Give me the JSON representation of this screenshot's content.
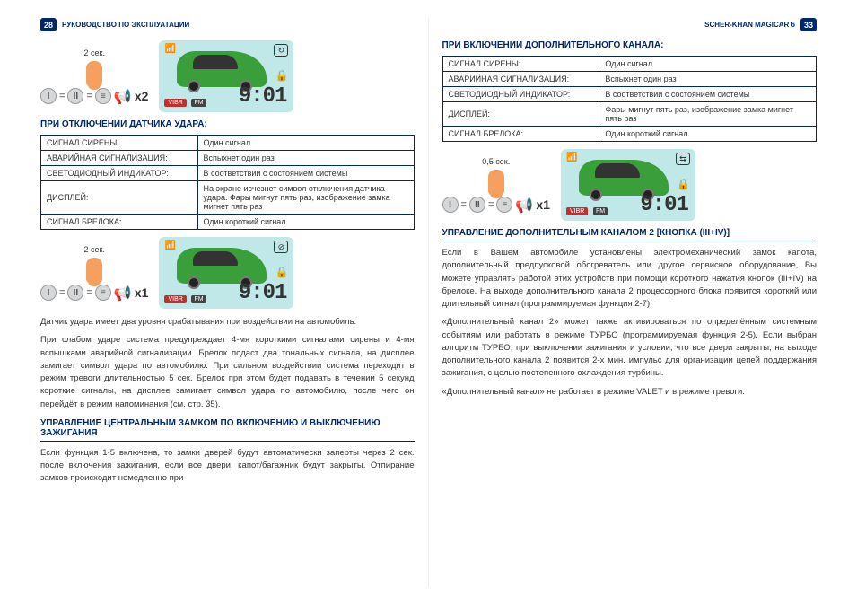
{
  "left": {
    "pageNum": "28",
    "headerText": "РУКОВОДСТВО ПО ЭКСПЛУАТАЦИИ",
    "seq1": {
      "secLabel": "2 сек.",
      "mult": "x2",
      "clock": "9:01",
      "badge": "VIBR",
      "fm": "FM",
      "topIcon": "↻"
    },
    "sectionA": "При отключении датчика удара:",
    "tableA": [
      [
        "СИГНАЛ СИРЕНЫ:",
        "Один сигнал"
      ],
      [
        "АВАРИЙНАЯ СИГНАЛИЗАЦИЯ:",
        "Вспыхнет один раз"
      ],
      [
        "СВЕТОДИОДНЫЙ ИНДИКАТОР:",
        "В соответствии с состоянием системы"
      ],
      [
        "ДИСПЛЕЙ:",
        "На экране исчезнет символ отключения датчика удара. Фары мигнут пять раз, изображение замка мигнет пять раз"
      ],
      [
        "СИГНАЛ БРЕЛОКА:",
        "Один короткий сигнал"
      ]
    ],
    "seq2": {
      "secLabel": "2 сек.",
      "mult": "x1",
      "clock": "9:01",
      "badge": "VIBR",
      "fm": "FM",
      "topIcon": "⊘"
    },
    "para1": "Датчик удара имеет два уровня срабатывания при воздействии на автомобиль.",
    "para2": "При слабом ударе система предупреждает 4-мя короткими сигналами сирены и 4-мя вспышками аварийной сигнализации. Брелок подаст два тональных сигнала, на дисплее замигает символ удара по автомобилю. При сильном воздействии система переходит в режим тревоги длительностью 5 сек. Брелок при этом будет подавать в течении 5 секунд короткие сигналы, на дисплее замигает символ удара по автомобилю, после чего он перейдёт в режим напоминания (см. стр. 35).",
    "sectionB": "УПРАВЛЕНИЕ ЦЕНТРАЛЬНЫМ ЗАМКОМ ПО ВКЛЮЧЕНИЮ И ВЫКЛЮЧЕНИЮ ЗАЖИГАНИЯ",
    "para3": "Если функция 1-5 включена, то замки дверей будут автоматически заперты через 2 сек. после включения зажигания, если все двери, капот/багажник будут закрыты. Отпирание замков происходит немедленно при"
  },
  "right": {
    "pageNum": "33",
    "headerText": "SCHER-KHAN MAGICAR 6",
    "sectionA": "При включении дополнительного канала:",
    "tableA": [
      [
        "СИГНАЛ СИРЕНЫ:",
        "Один сигнал"
      ],
      [
        "АВАРИЙНАЯ СИГНАЛИЗАЦИЯ:",
        "Вспыхнет один раз"
      ],
      [
        "СВЕТОДИОДНЫЙ ИНДИКАТОР:",
        "В соответствии с состоянием системы"
      ],
      [
        "ДИСПЛЕЙ:",
        "Фары мигнут пять раз, изображение замка мигнет пять раз"
      ],
      [
        "СИГНАЛ БРЕЛОКА:",
        "Один короткий сигнал"
      ]
    ],
    "seq1": {
      "secLabel": "0,5 сек.",
      "mult": "x1",
      "clock": "9:01",
      "badge": "VIBR",
      "fm": "FM",
      "topIcon": "⇆"
    },
    "sectionB": "УПРАВЛЕНИЕ ДОПОЛНИТЕЛЬНЫМ КАНАЛОМ 2 [КНОПКА (III+IV)]",
    "para1": "Если в Вашем автомобиле установлены электромеханический замок капота, дополнительный предпусковой обогреватель или другое сервисное оборудование, Вы можете управлять работой этих устройств при помощи короткого нажатия кнопок (III+IV) на брелоке. На выходе дополнительного канала 2 процессорного блока появится короткий или длительный сигнал (программируемая функция 2-7).",
    "para2": "«Дополнительный канал 2» может также активироваться по определённым системным событиям или работать в режиме ТУРБО (программируемая функция 2-5). Если выбран алгоритм ТУРБО, при выключении зажигания и условии, что все двери закрыты, на выходе дополнительного канала 2 появится 2-х мин. импульс для организации цепей поддержания зажигания, с целью постепенного охлаждения турбины.",
    "para3": "«Дополнительный канал» не работает в режиме VALET и в режиме тревоги."
  }
}
